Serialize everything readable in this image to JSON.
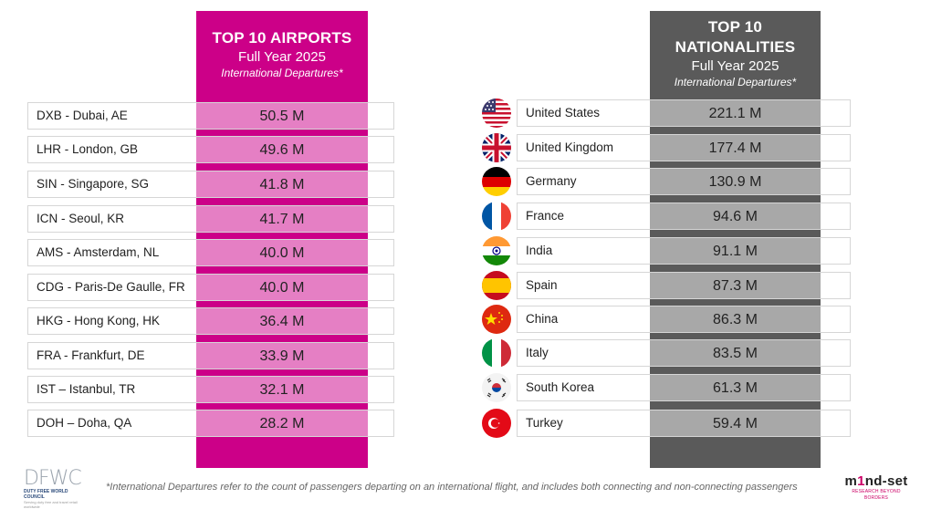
{
  "airports": {
    "title": "TOP 10 AIRPORTS",
    "year": "Full Year 2025",
    "subtitle": "International Departures*",
    "accent_color": "#cc0088",
    "cell_color": "#e57fc4",
    "rows": [
      {
        "label": "DXB - Dubai, AE",
        "value": "50.5 M"
      },
      {
        "label": "LHR - London, GB",
        "value": "49.6 M"
      },
      {
        "label": "SIN - Singapore, SG",
        "value": "41.8 M"
      },
      {
        "label": "ICN - Seoul, KR",
        "value": "41.7 M"
      },
      {
        "label": "AMS - Amsterdam, NL",
        "value": "40.0 M"
      },
      {
        "label": "CDG - Paris-De Gaulle, FR",
        "value": "40.0 M"
      },
      {
        "label": "HKG - Hong Kong, HK",
        "value": "36.4 M"
      },
      {
        "label": "FRA - Frankfurt, DE",
        "value": "33.9 M"
      },
      {
        "label": "IST – Istanbul, TR",
        "value": "32.1 M"
      },
      {
        "label": "DOH  – Doha, QA",
        "value": "28.2 M"
      }
    ]
  },
  "nationalities": {
    "title_line1": "TOP 10",
    "title_line2": "NATIONALITIES",
    "year": "Full Year 2025",
    "subtitle": "International Departures*",
    "accent_color": "#5a5a5a",
    "cell_color": "#a8a8a8",
    "rows": [
      {
        "label": "United States",
        "value": "221.1 M",
        "flag": "us-flag-icon"
      },
      {
        "label": "United Kingdom",
        "value": "177.4 M",
        "flag": "uk-flag-icon"
      },
      {
        "label": "Germany",
        "value": "130.9 M",
        "flag": "germany-flag-icon"
      },
      {
        "label": "France",
        "value": "94.6 M",
        "flag": "france-flag-icon"
      },
      {
        "label": "India",
        "value": "91.1 M",
        "flag": "india-flag-icon"
      },
      {
        "label": "Spain",
        "value": "87.3 M",
        "flag": "spain-flag-icon"
      },
      {
        "label": "China",
        "value": "86.3 M",
        "flag": "china-flag-icon"
      },
      {
        "label": "Italy",
        "value": "83.5 M",
        "flag": "italy-flag-icon"
      },
      {
        "label": "South Korea",
        "value": "61.3 M",
        "flag": "south-korea-flag-icon"
      },
      {
        "label": "Turkey",
        "value": "59.4 M",
        "flag": "turkey-flag-icon"
      }
    ]
  },
  "footer": {
    "footnote": "*International Departures refer to the count of passengers departing on an international flight, and includes both connecting and non-connecting passengers",
    "dfwc_logo_letters": "DFWC",
    "dfwc_logo_name": "DUTY FREE WORLD COUNCIL",
    "dfwc_logo_tagline": "Serving duty free and travel retail worldwide",
    "mindset_logo_pre": "m",
    "mindset_logo_one": "1",
    "mindset_logo_post": "nd-set",
    "mindset_logo_tagline": "RESEARCH BEYOND BORDERS"
  }
}
